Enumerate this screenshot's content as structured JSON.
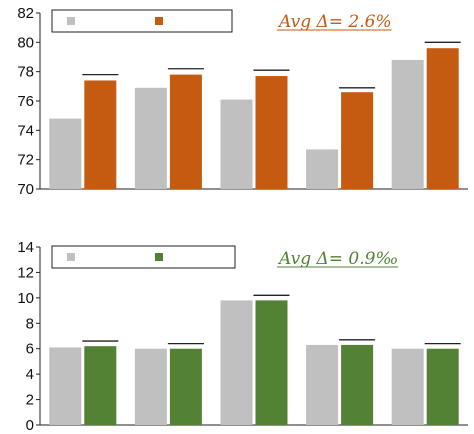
{
  "chart_data": [
    {
      "type": "bar",
      "categories": [
        "",
        "",
        "",
        "",
        ""
      ],
      "series": [
        {
          "color": "#c0c0c0",
          "values": [
            74.8,
            76.9,
            76.1,
            72.7,
            78.8
          ]
        },
        {
          "color": "#c55a11",
          "values": [
            77.4,
            77.8,
            77.7,
            76.6,
            79.6
          ]
        }
      ],
      "markers": [
        77.8,
        78.2,
        78.1,
        76.9,
        80.0
      ],
      "ylim": [
        70,
        82
      ],
      "yticks": [
        70,
        72,
        74,
        76,
        78,
        80,
        82
      ],
      "annotation": "Avg Δ= 2.6%",
      "annotation_color": "#c55a11",
      "legend_placement": "top-left",
      "grid": false
    },
    {
      "type": "bar",
      "categories": [
        "",
        "",
        "",
        "",
        ""
      ],
      "series": [
        {
          "color": "#c0c0c0",
          "values": [
            6.1,
            6.0,
            9.8,
            6.3,
            6.0
          ]
        },
        {
          "color": "#548235",
          "values": [
            6.2,
            6.0,
            9.8,
            6.3,
            6.0
          ]
        }
      ],
      "markers": [
        6.6,
        6.4,
        10.2,
        6.7,
        6.4
      ],
      "ylim": [
        0,
        14
      ],
      "yticks": [
        0,
        2,
        4,
        6,
        8,
        10,
        12,
        14
      ],
      "annotation": "Avg Δ= 0.9‰",
      "annotation_color": "#548235",
      "legend_placement": "top-left",
      "grid": false
    }
  ]
}
